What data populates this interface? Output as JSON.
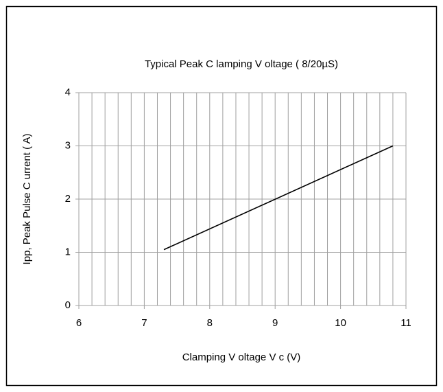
{
  "chart_data": {
    "type": "line",
    "title": "Typical Peak C lamping V oltage ( 8/20µS)",
    "x_label": "Clamping V oltage V c (V)",
    "y_label": "Ipp, Peak Pulse C urrent ( A)",
    "x": [
      7.3,
      10.8
    ],
    "series": [
      {
        "name": "Ipp",
        "color": "#000000",
        "values": [
          1.05,
          3
        ]
      }
    ],
    "xlim": [
      6,
      11
    ],
    "xticks": [
      6,
      7,
      8,
      9,
      10,
      11
    ],
    "ylim": [
      0,
      4
    ],
    "yticks": [
      0,
      1,
      2,
      3,
      4
    ],
    "grid": true
  }
}
